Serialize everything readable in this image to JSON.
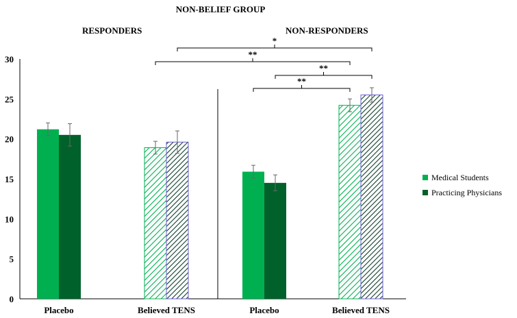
{
  "chart_data": {
    "type": "bar",
    "title": "NON-BELIEF GROUP",
    "group_labels": [
      "RESPONDERS",
      "NON-RESPONDERS"
    ],
    "categories": [
      "Placebo",
      "Believed TENS",
      "Placebo",
      "Believed TENS"
    ],
    "category_groups": [
      "RESPONDERS",
      "RESPONDERS",
      "NON-RESPONDERS",
      "NON-RESPONDERS"
    ],
    "series": [
      {
        "name": "Medical Students",
        "color": "#00b050",
        "values": [
          21.2,
          18.9,
          15.9,
          24.2
        ],
        "errors": [
          0.8,
          0.8,
          0.8,
          0.8
        ]
      },
      {
        "name": "Practicing Physicians",
        "color": "#00612a",
        "values": [
          20.5,
          19.6,
          14.5,
          25.5
        ],
        "errors": [
          1.4,
          1.4,
          1.0,
          0.9
        ]
      }
    ],
    "hatched_categories": [
      1,
      3
    ],
    "ylim": [
      0,
      30
    ],
    "yticks": [
      0,
      5,
      10,
      15,
      20,
      25,
      30
    ],
    "grid": false,
    "legend_position": "right",
    "significance": [
      {
        "label": "**",
        "from": {
          "category": 2,
          "series": 0
        },
        "to": {
          "category": 3,
          "series": 0
        }
      },
      {
        "label": "**",
        "from": {
          "category": 2,
          "series": 1
        },
        "to": {
          "category": 3,
          "series": 1
        }
      },
      {
        "label": "**",
        "from": {
          "category": 1,
          "series": 0
        },
        "to": {
          "category": 3,
          "series": 0
        }
      },
      {
        "label": "*",
        "from": {
          "category": 1,
          "series": 1
        },
        "to": {
          "category": 3,
          "series": 1
        }
      }
    ]
  }
}
